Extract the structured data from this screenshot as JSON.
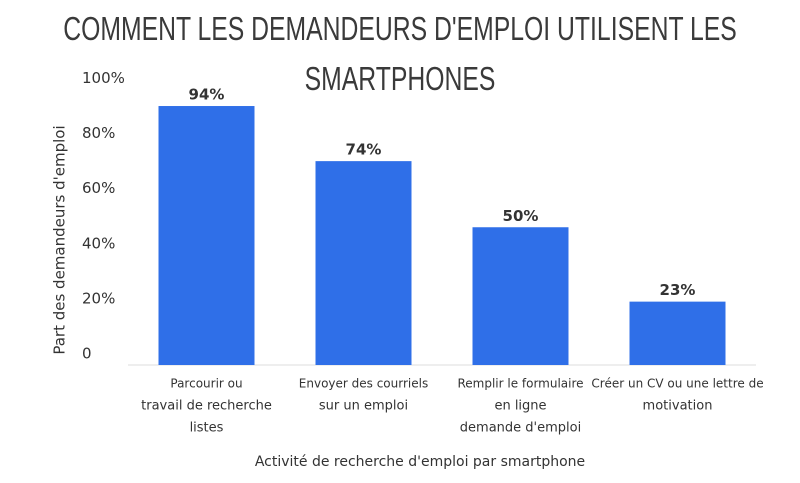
{
  "chart_data": {
    "type": "bar",
    "title": "COMMENT LES DEMANDEURS D'EMPLOI UTILISENT LES SMARTPHONES",
    "x_label": "Activité de recherche d'emploi par smartphone",
    "y_label": "Part des demandeurs d'emploi",
    "categories": [
      [
        "Parcourir ou",
        "travail de recherche",
        "listes"
      ],
      [
        "Envoyer des courriels",
        "sur un emploi"
      ],
      [
        "Remplir le formulaire",
        "en ligne",
        "demande d'emploi"
      ],
      [
        "Créer un CV ou une lettre de",
        "motivation"
      ]
    ],
    "values": [
      94,
      74,
      50,
      23
    ],
    "value_labels": [
      "94%",
      "74%",
      "50%",
      "23%"
    ],
    "color": "#2f6fe8",
    "ylim": [
      0,
      100
    ],
    "yticks": [
      0,
      {
        "value": 20,
        "label": "20%"
      },
      {
        "value": 40,
        "label": "40%"
      },
      {
        "value": 60,
        "label": "60%"
      },
      {
        "value": 80,
        "label": "80%"
      },
      {
        "value": 100,
        "label": "100%"
      }
    ],
    "grid": false
  }
}
